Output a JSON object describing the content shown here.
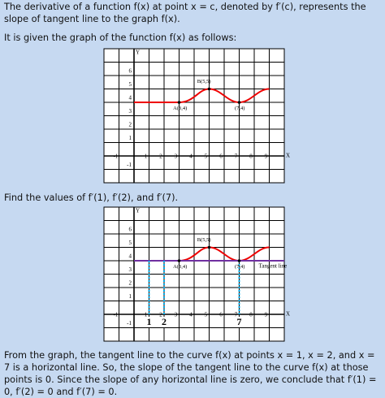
{
  "paragraphs": [
    "The derivative of a function f(x) at point x = c, denoted by f′(c), represents the slope of tangent line to the graph f(x).",
    "It is given the graph of the function f(x) as follows:",
    "Find the values of f′(1), f′(2), and f′(7).",
    "From the graph, the tangent line to the curve f(x) at points x = 1, x = 2, and x = 7 is a horizontal line. So, the slope of the tangent line to the curve f(x) at those points is 0. Since the slope of any horizontal line is zero, we conclude that f′(1) = 0, f′(2) = 0 and f′(7) = 0."
  ],
  "graphs": [
    {
      "x_tick_labels": [
        "-1",
        "1",
        "2",
        "3",
        "4",
        "5",
        "6",
        "7",
        "8",
        "9"
      ],
      "y_tick_labels": [
        "6",
        "5",
        "4",
        "3",
        "2",
        "1",
        "-1"
      ],
      "x_axis_label": "X",
      "y_axis_label": "Y",
      "point_labels": [
        "B(5,5)",
        "A(3,4)",
        "(7,4)"
      ]
    },
    {
      "x_tick_labels": [
        "-1",
        "1",
        "2",
        "3",
        "4",
        "5",
        "6",
        "7",
        "8",
        "9"
      ],
      "y_tick_labels": [
        "6",
        "5",
        "4",
        "3",
        "2",
        "1",
        "-1"
      ],
      "x_axis_label": "X",
      "y_axis_label": "Y",
      "point_labels": [
        "B(5,5)",
        "A(3,4)",
        "(7,4)"
      ],
      "tangent_label": "Tangent line",
      "marked_x": [
        "1",
        "2",
        "7"
      ]
    }
  ]
}
